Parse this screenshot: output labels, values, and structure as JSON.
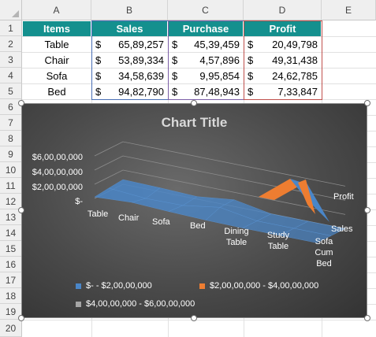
{
  "columns": [
    "A",
    "B",
    "C",
    "D",
    "E"
  ],
  "rows": [
    "1",
    "2",
    "3",
    "4",
    "5",
    "6",
    "7",
    "8",
    "9",
    "10",
    "11",
    "12",
    "13",
    "14",
    "15",
    "16",
    "17",
    "18",
    "19",
    "20"
  ],
  "table": {
    "headers": [
      "Items",
      "Sales",
      "Purchase",
      "Profit"
    ],
    "currency": "$",
    "data": [
      {
        "item": "Table",
        "sales": "65,89,257",
        "purchase": "45,39,459",
        "profit": "20,49,798"
      },
      {
        "item": "Chair",
        "sales": "53,89,334",
        "purchase": "4,57,896",
        "profit": "49,31,438"
      },
      {
        "item": "Sofa",
        "sales": "34,58,639",
        "purchase": "9,95,854",
        "profit": "24,62,785"
      },
      {
        "item": "Bed",
        "sales": "94,82,790",
        "purchase": "87,48,943",
        "profit": "7,33,847"
      }
    ]
  },
  "chart_data": {
    "type": "area",
    "subtype": "3d-surface",
    "title": "Chart Title",
    "categories": [
      "Table",
      "Chair",
      "Sofa",
      "Bed",
      "Dining Table",
      "Study Table",
      "Sofa Cum Bed"
    ],
    "series": [
      {
        "name": "Sales",
        "values": [
          6589257,
          5389334,
          3458639,
          9482790,
          null,
          null,
          null
        ]
      },
      {
        "name": "Purchase",
        "values": [
          4539459,
          457896,
          995854,
          8748943,
          null,
          null,
          null
        ]
      },
      {
        "name": "Profit",
        "values": [
          2049798,
          4931438,
          2462785,
          733847,
          null,
          null,
          null
        ]
      }
    ],
    "y_ticks": [
      "$-",
      "$2,00,00,000",
      "$4,00,00,000",
      "$6,00,00,000"
    ],
    "depth_labels": [
      "Profit",
      "Sales"
    ],
    "legend": [
      {
        "label": "$-  - $2,00,00,000",
        "color": "#4a86c8"
      },
      {
        "label": "$2,00,00,000 - $4,00,00,000",
        "color": "#ed7d31"
      },
      {
        "label": "$4,00,00,000 - $6,00,00,000",
        "color": "#a5a5a5"
      }
    ],
    "legend_position": "bottom",
    "grid": true,
    "colors": {
      "background": "#4a4a4a",
      "band1": "#4a86c8",
      "band2": "#ed7d31",
      "band3": "#a5a5a5"
    }
  },
  "colors": {
    "header_fill": "#14908e"
  }
}
